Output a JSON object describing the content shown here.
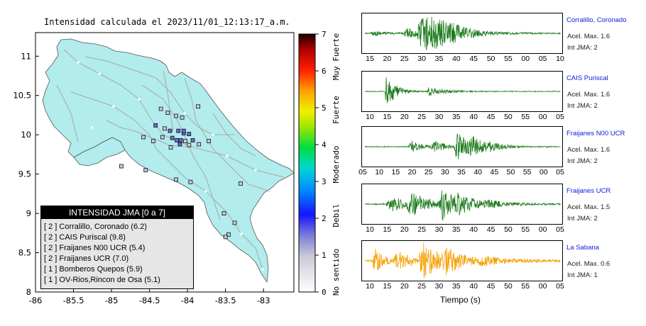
{
  "map": {
    "title": "Intensidad calculada el 2023/11/01_12:13:17_a.m.",
    "x_ticks": [
      "-86",
      "-85.5",
      "-85",
      "-84.5",
      "-84",
      "-83.5",
      "-83"
    ],
    "y_ticks": [
      "11",
      "10.5",
      "10",
      "9.5",
      "9",
      "8.5",
      "8"
    ],
    "colorbar": {
      "ticks": [
        "7",
        "6",
        "5",
        "4",
        "3",
        "2",
        "1",
        "0"
      ],
      "labels": [
        "Muy Fuerte",
        "Fuerte",
        "Moderado",
        "Debil",
        "No sentido"
      ]
    },
    "legend": {
      "title": "INTENSIDAD JMA [0 a 7]",
      "items": [
        "[ 2 ]  Corralillo, Coronado (6.2)",
        "[ 2 ]  CAIS Puriscal (9.8)",
        "[ 2 ]  Fraijanes N00 UCR (5.4)",
        "[ 2 ]  Fraijanes UCR (7.0)",
        "[ 1 ]  Bomberos Quepos (5.9)",
        "[ 1 ]  OV-Rios,Rincon de Osa (5.1)"
      ]
    }
  },
  "waveforms": {
    "xlabel": "Tiempo (s)",
    "panels": [
      {
        "station": "Corralillo, Coronado",
        "acel": "Acel. Max. 1.6",
        "int": "Int JMA: 2",
        "color": "#1a7a1a",
        "ticks": [
          "15",
          "20",
          "25",
          "30",
          "35",
          "40",
          "45",
          "50",
          "55",
          "00",
          "05",
          "10"
        ]
      },
      {
        "station": "CAIS Puriscal",
        "acel": "Acel. Max. 1.6",
        "int": "Int JMA: 2",
        "color": "#1a7a1a",
        "ticks": [
          "10",
          "15",
          "20",
          "25",
          "30",
          "35",
          "40",
          "45",
          "50",
          "55",
          "00",
          "05"
        ]
      },
      {
        "station": "Fraijanes N00 UCR",
        "acel": "Acel. Max. 1.6",
        "int": "Int JMA: 2",
        "color": "#1a7a1a",
        "ticks": [
          "05",
          "10",
          "15",
          "20",
          "25",
          "30",
          "35",
          "40",
          "45",
          "50",
          "55",
          "00",
          "05"
        ]
      },
      {
        "station": "Fraijanes UCR",
        "acel": "Acel. Max. 1.5",
        "int": "Int JMA: 2",
        "color": "#1a7a1a",
        "ticks": [
          "10",
          "15",
          "20",
          "25",
          "30",
          "35",
          "40",
          "45",
          "50",
          "55",
          "00",
          "05"
        ]
      },
      {
        "station": "La Sabana",
        "acel": "Acel. Max. 0.6",
        "int": "Int JMA: 1",
        "color": "#f5a000",
        "ticks": [
          "10",
          "15",
          "20",
          "25",
          "30",
          "35",
          "40",
          "45",
          "50",
          "55",
          "00",
          "05"
        ]
      }
    ]
  },
  "chart_data": {
    "type": "scatter",
    "title": "Intensidad calculada el 2023/11/01_12:13:17_a.m.",
    "xlim": [
      -86,
      -82.6
    ],
    "ylim": [
      8,
      11.3
    ],
    "stations": [
      {
        "lon": -84.35,
        "lat": 10.33,
        "int": 1
      },
      {
        "lon": -84.26,
        "lat": 10.28,
        "int": 1
      },
      {
        "lon": -84.15,
        "lat": 10.24,
        "int": 1
      },
      {
        "lon": -84.07,
        "lat": 10.22,
        "int": 1
      },
      {
        "lon": -83.86,
        "lat": 10.36,
        "int": 1
      },
      {
        "lon": -84.42,
        "lat": 10.12,
        "int": 2
      },
      {
        "lon": -84.3,
        "lat": 10.08,
        "int": 1
      },
      {
        "lon": -84.23,
        "lat": 10.05,
        "int": 2
      },
      {
        "lon": -84.12,
        "lat": 10.05,
        "int": 2
      },
      {
        "lon": -84.05,
        "lat": 10.02,
        "int": 2
      },
      {
        "lon": -83.98,
        "lat": 10.01,
        "int": 2
      },
      {
        "lon": -84.33,
        "lat": 9.97,
        "int": 1
      },
      {
        "lon": -84.2,
        "lat": 9.96,
        "int": 2
      },
      {
        "lon": -84.14,
        "lat": 9.93,
        "int": 2
      },
      {
        "lon": -84.09,
        "lat": 9.93,
        "int": 2
      },
      {
        "lon": -84.03,
        "lat": 9.92,
        "int": 1
      },
      {
        "lon": -83.93,
        "lat": 9.93,
        "int": 2
      },
      {
        "lon": -84.1,
        "lat": 9.88,
        "int": 2
      },
      {
        "lon": -83.98,
        "lat": 9.87,
        "int": 1
      },
      {
        "lon": -83.85,
        "lat": 9.88,
        "int": 1
      },
      {
        "lon": -84.45,
        "lat": 9.92,
        "int": 1
      },
      {
        "lon": -83.72,
        "lat": 9.92,
        "int": 1
      },
      {
        "lon": -84.22,
        "lat": 9.84,
        "int": 1
      },
      {
        "lon": -84.58,
        "lat": 9.97,
        "int": 1
      },
      {
        "lon": -84.55,
        "lat": 9.55,
        "int": 1
      },
      {
        "lon": -84.15,
        "lat": 9.43,
        "int": 1
      },
      {
        "lon": -83.96,
        "lat": 9.4,
        "int": 1
      },
      {
        "lon": -84.87,
        "lat": 9.6,
        "int": 1
      },
      {
        "lon": -83.3,
        "lat": 9.38,
        "int": 1
      },
      {
        "lon": -83.52,
        "lat": 9.0,
        "int": 1
      },
      {
        "lon": -83.38,
        "lat": 8.88,
        "int": 1
      },
      {
        "lon": -83.46,
        "lat": 8.73,
        "int": 1
      },
      {
        "lon": -83.5,
        "lat": 8.7,
        "int": 1
      },
      {
        "lon": -84.05,
        "lat": 10.05,
        "int": 2
      }
    ],
    "waveforms": [
      {
        "station": "Corralillo, Coronado",
        "acel_max": 1.6,
        "int_jma": 2
      },
      {
        "station": "CAIS Puriscal",
        "acel_max": 1.6,
        "int_jma": 2
      },
      {
        "station": "Fraijanes N00 UCR",
        "acel_max": 1.6,
        "int_jma": 2
      },
      {
        "station": "Fraijanes UCR",
        "acel_max": 1.5,
        "int_jma": 2
      },
      {
        "station": "La Sabana",
        "acel_max": 0.6,
        "int_jma": 1
      }
    ]
  }
}
